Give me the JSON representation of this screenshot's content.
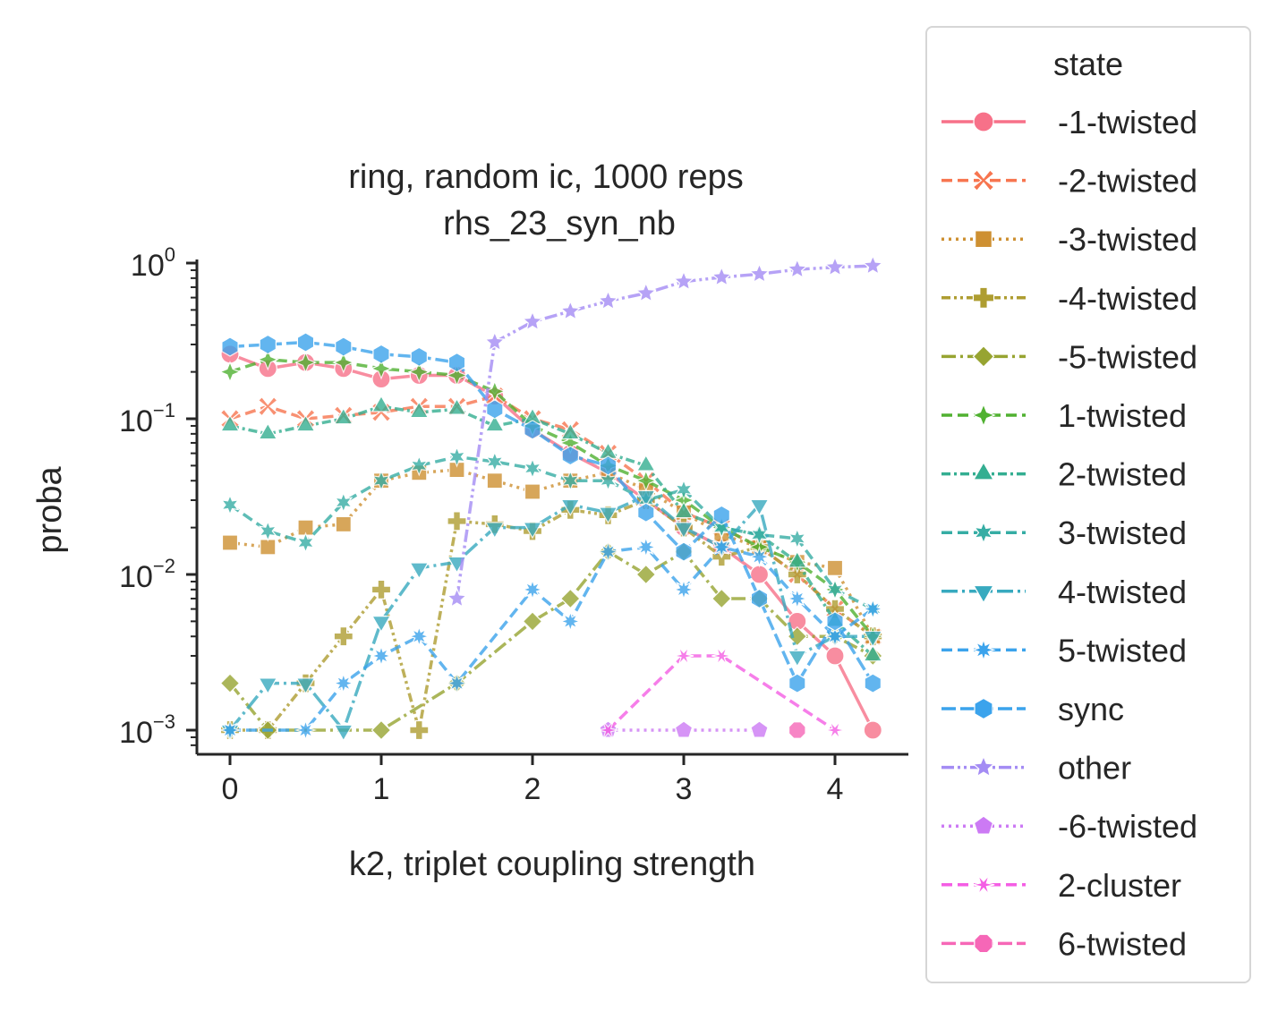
{
  "chart_data": {
    "type": "line",
    "title": "ring, random ic, 1000 reps",
    "subtitle": "rhs_23_syn_nb",
    "xlabel": "k2, triplet coupling strength",
    "ylabel": "proba",
    "yscale": "log",
    "xlim": [
      -0.2,
      4.5
    ],
    "ylim": [
      0.0007,
      1.1
    ],
    "xticks": [
      "0",
      "1",
      "2",
      "3",
      "4"
    ],
    "yticks": [
      {
        "base": "10",
        "exp": "−3",
        "value": 0.001
      },
      {
        "base": "10",
        "exp": "−2",
        "value": 0.01
      },
      {
        "base": "10",
        "exp": "−1",
        "value": 0.1
      },
      {
        "base": "10",
        "exp": "0",
        "value": 1
      }
    ],
    "grid": false,
    "legend": {
      "title": "state",
      "placement": "outside right"
    },
    "series": [
      {
        "name": "-1-twisted",
        "color": "#f77189",
        "dash": "",
        "marker": "circle",
        "points": [
          [
            0,
            0.26
          ],
          [
            0.25,
            0.21
          ],
          [
            0.5,
            0.23
          ],
          [
            0.75,
            0.21
          ],
          [
            1,
            0.18
          ],
          [
            1.25,
            0.19
          ],
          [
            1.5,
            0.19
          ],
          [
            1.75,
            0.14
          ],
          [
            2,
            0.085
          ],
          [
            2.25,
            0.06
          ],
          [
            2.5,
            0.045
          ],
          [
            2.75,
            0.03
          ],
          [
            3,
            0.02
          ],
          [
            3.25,
            0.015
          ],
          [
            3.5,
            0.01
          ],
          [
            3.75,
            0.005
          ],
          [
            4,
            0.003
          ],
          [
            4.25,
            0.001
          ]
        ]
      },
      {
        "name": "-2-twisted",
        "color": "#f7754f",
        "dash": "12,6",
        "marker": "x",
        "points": [
          [
            0,
            0.1
          ],
          [
            0.25,
            0.12
          ],
          [
            0.5,
            0.1
          ],
          [
            0.75,
            0.105
          ],
          [
            1,
            0.11
          ],
          [
            1.25,
            0.12
          ],
          [
            1.5,
            0.12
          ],
          [
            1.75,
            0.14
          ],
          [
            2,
            0.1
          ],
          [
            2.25,
            0.085
          ],
          [
            2.5,
            0.06
          ],
          [
            2.75,
            0.04
          ],
          [
            3,
            0.025
          ],
          [
            3.25,
            0.02
          ],
          [
            3.5,
            0.015
          ],
          [
            3.75,
            0.01
          ],
          [
            4,
            0.006
          ],
          [
            4.25,
            0.004
          ]
        ]
      },
      {
        "name": "-3-twisted",
        "color": "#ce9032",
        "dash": "3,5",
        "marker": "square",
        "points": [
          [
            0,
            0.016
          ],
          [
            0.25,
            0.015
          ],
          [
            0.5,
            0.02
          ],
          [
            0.75,
            0.021
          ],
          [
            1,
            0.04
          ],
          [
            1.25,
            0.045
          ],
          [
            1.5,
            0.047
          ],
          [
            1.75,
            0.04
          ],
          [
            2,
            0.034
          ],
          [
            2.25,
            0.04
          ],
          [
            2.5,
            0.045
          ],
          [
            2.75,
            0.035
          ],
          [
            3,
            0.025
          ],
          [
            3.25,
            0.018
          ],
          [
            3.5,
            0.015
          ],
          [
            3.75,
            0.012
          ],
          [
            4,
            0.011
          ],
          [
            4.25,
            0.004
          ]
        ]
      },
      {
        "name": "-4-twisted",
        "color": "#ae9d31",
        "dash": "10,4,3,4,3,4",
        "marker": "plus",
        "points": [
          [
            0,
            0.001
          ],
          [
            0.25,
            0.001
          ],
          [
            0.5,
            0.002
          ],
          [
            0.75,
            0.004
          ],
          [
            1,
            0.008
          ],
          [
            1.25,
            0.001
          ],
          [
            1.5,
            0.022
          ],
          [
            1.75,
            0.021
          ],
          [
            2,
            0.019
          ],
          [
            2.25,
            0.026
          ],
          [
            2.5,
            0.024
          ],
          [
            2.75,
            0.03
          ],
          [
            3,
            0.02
          ],
          [
            3.25,
            0.013
          ],
          [
            3.5,
            0.015
          ],
          [
            3.75,
            0.01
          ],
          [
            4,
            0.006
          ],
          [
            4.25,
            0.004
          ]
        ]
      },
      {
        "name": "-5-twisted",
        "color": "#97a431",
        "dash": "16,5,3,5",
        "marker": "diamond",
        "points": [
          [
            0,
            0.002
          ],
          [
            0.25,
            0.001
          ],
          [
            1,
            0.001
          ],
          [
            1.5,
            0.002
          ],
          [
            2,
            0.005
          ],
          [
            2.25,
            0.007
          ],
          [
            2.5,
            0.014
          ],
          [
            2.75,
            0.01
          ],
          [
            3,
            0.014
          ],
          [
            3.25,
            0.007
          ],
          [
            3.5,
            0.007
          ],
          [
            3.75,
            0.004
          ],
          [
            4,
            0.004
          ],
          [
            4.25,
            0.003
          ]
        ]
      },
      {
        "name": "1-twisted",
        "color": "#50b131",
        "dash": "12,6",
        "marker": "star4",
        "points": [
          [
            0,
            0.2
          ],
          [
            0.25,
            0.24
          ],
          [
            0.5,
            0.23
          ],
          [
            0.75,
            0.23
          ],
          [
            1,
            0.21
          ],
          [
            1.25,
            0.2
          ],
          [
            1.5,
            0.19
          ],
          [
            1.75,
            0.15
          ],
          [
            2,
            0.09
          ],
          [
            2.25,
            0.07
          ],
          [
            2.5,
            0.05
          ],
          [
            2.75,
            0.04
          ],
          [
            3,
            0.03
          ],
          [
            3.25,
            0.02
          ],
          [
            3.5,
            0.015
          ],
          [
            3.75,
            0.012
          ],
          [
            4,
            0.008
          ],
          [
            4.25,
            0.004
          ]
        ]
      },
      {
        "name": "2-twisted",
        "color": "#34ae91",
        "dash": "10,4,3,4",
        "marker": "triangle-up",
        "points": [
          [
            0,
            0.09
          ],
          [
            0.25,
            0.08
          ],
          [
            0.5,
            0.09
          ],
          [
            0.75,
            0.1
          ],
          [
            1,
            0.12
          ],
          [
            1.25,
            0.11
          ],
          [
            1.5,
            0.115
          ],
          [
            1.75,
            0.09
          ],
          [
            2,
            0.1
          ],
          [
            2.25,
            0.08
          ],
          [
            2.5,
            0.06
          ],
          [
            2.75,
            0.05
          ],
          [
            3,
            0.025
          ],
          [
            3.25,
            0.02
          ],
          [
            3.5,
            0.018
          ],
          [
            3.75,
            0.012
          ],
          [
            4,
            0.005
          ],
          [
            4.25,
            0.003
          ]
        ]
      },
      {
        "name": "3-twisted",
        "color": "#36ada4",
        "dash": "12,6",
        "marker": "star6",
        "points": [
          [
            0,
            0.028
          ],
          [
            0.25,
            0.019
          ],
          [
            0.5,
            0.016
          ],
          [
            0.75,
            0.029
          ],
          [
            1,
            0.04
          ],
          [
            1.25,
            0.05
          ],
          [
            1.5,
            0.057
          ],
          [
            1.75,
            0.053
          ],
          [
            2,
            0.048
          ],
          [
            2.25,
            0.04
          ],
          [
            2.5,
            0.04
          ],
          [
            2.75,
            0.03
          ],
          [
            3,
            0.035
          ],
          [
            3.25,
            0.02
          ],
          [
            3.5,
            0.018
          ],
          [
            3.75,
            0.017
          ],
          [
            4,
            0.008
          ],
          [
            4.25,
            0.006
          ]
        ]
      },
      {
        "name": "4-twisted",
        "color": "#38aabf",
        "dash": "18,5,3,5",
        "marker": "triangle-down",
        "points": [
          [
            0,
            0.001
          ],
          [
            0.25,
            0.002
          ],
          [
            0.5,
            0.002
          ],
          [
            0.75,
            0.001
          ],
          [
            1,
            0.005
          ],
          [
            1.25,
            0.011
          ],
          [
            1.5,
            0.012
          ],
          [
            1.75,
            0.02
          ],
          [
            2,
            0.02
          ],
          [
            2.25,
            0.028
          ],
          [
            2.5,
            0.025
          ],
          [
            2.75,
            0.032
          ],
          [
            3,
            0.02
          ],
          [
            3.25,
            0.015
          ],
          [
            3.5,
            0.028
          ],
          [
            3.75,
            0.003
          ],
          [
            4,
            0.004
          ],
          [
            4.25,
            0.004
          ]
        ]
      },
      {
        "name": "5-twisted",
        "color": "#3ba3ec",
        "dash": "12,6",
        "marker": "star8",
        "points": [
          [
            0,
            0.001
          ],
          [
            0.5,
            0.001
          ],
          [
            0.75,
            0.002
          ],
          [
            1,
            0.003
          ],
          [
            1.25,
            0.004
          ],
          [
            1.5,
            0.002
          ],
          [
            2,
            0.008
          ],
          [
            2.25,
            0.005
          ],
          [
            2.5,
            0.014
          ],
          [
            2.75,
            0.015
          ],
          [
            3,
            0.008
          ],
          [
            3.25,
            0.015
          ],
          [
            3.5,
            0.013
          ],
          [
            3.75,
            0.007
          ],
          [
            4,
            0.004
          ],
          [
            4.25,
            0.006
          ]
        ]
      },
      {
        "name": "sync",
        "color": "#3ba3ec",
        "dash": "16,5",
        "marker": "hexagon",
        "points": [
          [
            0,
            0.29
          ],
          [
            0.25,
            0.3
          ],
          [
            0.5,
            0.31
          ],
          [
            0.75,
            0.29
          ],
          [
            1,
            0.26
          ],
          [
            1.25,
            0.25
          ],
          [
            1.5,
            0.23
          ],
          [
            1.75,
            0.115
          ],
          [
            2,
            0.085
          ],
          [
            2.25,
            0.058
          ],
          [
            2.5,
            0.05
          ],
          [
            2.75,
            0.025
          ],
          [
            3,
            0.014
          ],
          [
            3.25,
            0.024
          ],
          [
            3.5,
            0.007
          ],
          [
            3.75,
            0.002
          ],
          [
            4,
            0.005
          ],
          [
            4.25,
            0.002
          ]
        ]
      },
      {
        "name": "other",
        "color": "#a48cf4",
        "dash": "14,4,3,4,3,4",
        "marker": "star5",
        "points": [
          [
            1.5,
            0.007
          ],
          [
            1.75,
            0.31
          ],
          [
            2,
            0.42
          ],
          [
            2.25,
            0.49
          ],
          [
            2.5,
            0.57
          ],
          [
            2.75,
            0.64
          ],
          [
            3,
            0.76
          ],
          [
            3.25,
            0.81
          ],
          [
            3.5,
            0.85
          ],
          [
            3.75,
            0.91
          ],
          [
            4,
            0.94
          ],
          [
            4.25,
            0.96
          ]
        ]
      },
      {
        "name": "-6-twisted",
        "color": "#cc7af4",
        "dash": "3,5",
        "marker": "pentagon",
        "points": [
          [
            2.5,
            0.001
          ],
          [
            3,
            0.001
          ],
          [
            3.5,
            0.001
          ]
        ]
      },
      {
        "name": "2-cluster",
        "color": "#f45ee4",
        "dash": "12,6",
        "marker": "asterisk",
        "points": [
          [
            2.5,
            0.001
          ],
          [
            3,
            0.003
          ],
          [
            3.25,
            0.003
          ],
          [
            4,
            0.001
          ]
        ]
      },
      {
        "name": "6-twisted",
        "color": "#f667b7",
        "dash": "16,5",
        "marker": "octagon",
        "points": [
          [
            3.75,
            0.001
          ]
        ]
      }
    ]
  }
}
